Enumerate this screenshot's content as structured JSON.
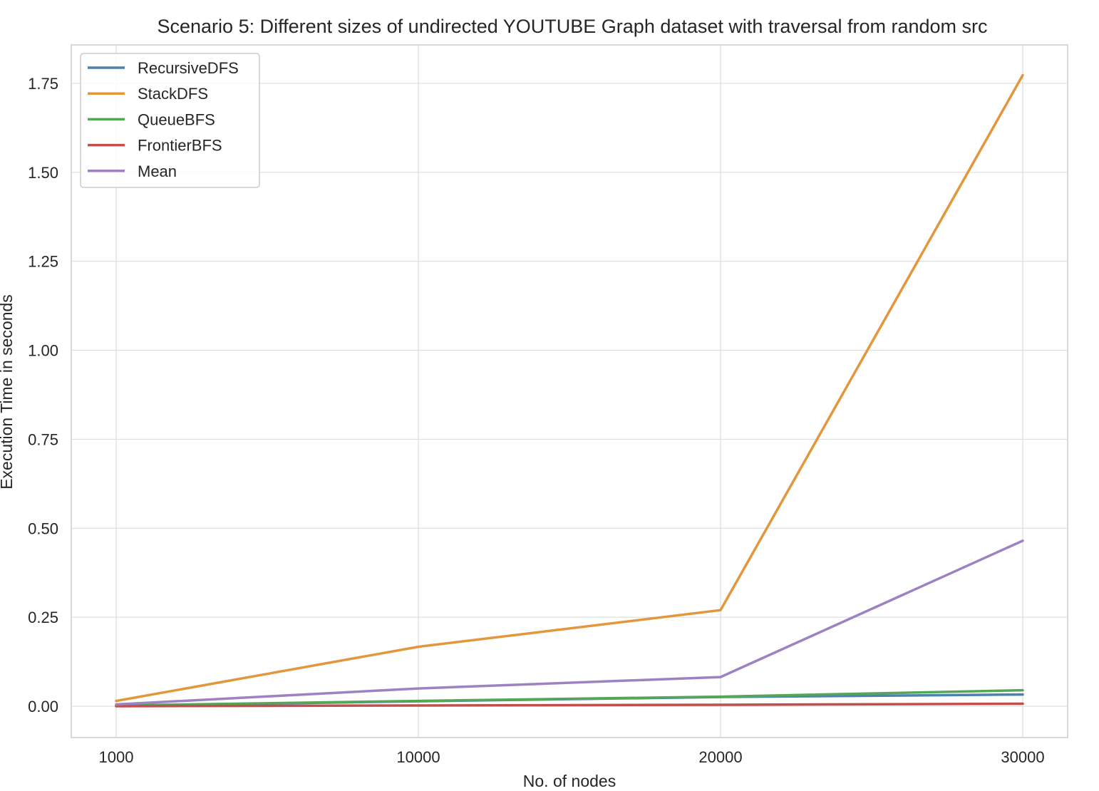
{
  "chart_data": {
    "type": "line",
    "title": "Scenario 5: Different sizes of undirected YOUTUBE Graph dataset with traversal from random src",
    "xlabel": "No. of nodes",
    "ylabel": "Execution Time in seconds",
    "categories": [
      "1000",
      "10000",
      "20000",
      "30000"
    ],
    "y_ticks": [
      "0.00",
      "0.25",
      "0.50",
      "0.75",
      "1.00",
      "1.25",
      "1.50",
      "1.75"
    ],
    "ylim": [
      -0.088,
      1.858
    ],
    "grid": true,
    "legend_position": "upper-left",
    "series": [
      {
        "name": "RecursiveDFS",
        "color": "#4c82b0",
        "values": [
          0.001,
          0.014,
          0.026,
          0.033
        ]
      },
      {
        "name": "StackDFS",
        "color": "#e4963c",
        "values": [
          0.015,
          0.167,
          0.27,
          1.773
        ]
      },
      {
        "name": "QueueBFS",
        "color": "#55a657",
        "values": [
          0.002,
          0.015,
          0.027,
          0.045
        ]
      },
      {
        "name": "FrontierBFS",
        "color": "#c0504d",
        "values": [
          0.0,
          0.002,
          0.004,
          0.007
        ]
      },
      {
        "name": "Mean",
        "color": "#9d82c2",
        "values": [
          0.005,
          0.05,
          0.082,
          0.465
        ]
      }
    ]
  }
}
